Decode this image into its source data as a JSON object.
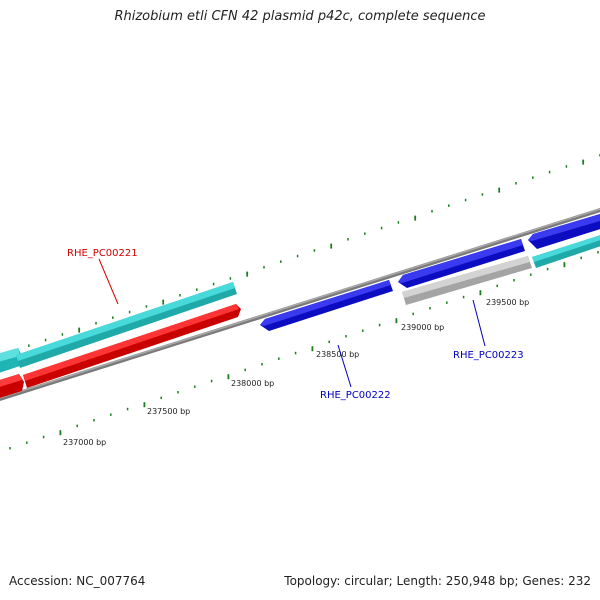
{
  "title": "Rhizobium etli CFN 42 plasmid p42c, complete sequence",
  "footer": {
    "accession": "Accession: NC_007764",
    "summary": "Topology: circular; Length: 250,948 bp; Genes: 232"
  },
  "colors": {
    "backbone": "#8c8c8c",
    "tick": "#1a7f1a",
    "cyan": "#27c9c9",
    "red": "#ee1111",
    "blue": "#1717e0",
    "gray": "#bdbdbd",
    "label_red": "#d40000",
    "label_blue": "#0000c0"
  },
  "scale_labels": [
    "237000 bp",
    "237500 bp",
    "238000 bp",
    "238500 bp",
    "239000 bp",
    "239500 bp"
  ],
  "gene_labels": [
    {
      "text": "RHE_PC00221",
      "color": "red"
    },
    {
      "text": "RHE_PC00222",
      "color": "blue"
    },
    {
      "text": "RHE_PC00223",
      "color": "blue"
    }
  ]
}
